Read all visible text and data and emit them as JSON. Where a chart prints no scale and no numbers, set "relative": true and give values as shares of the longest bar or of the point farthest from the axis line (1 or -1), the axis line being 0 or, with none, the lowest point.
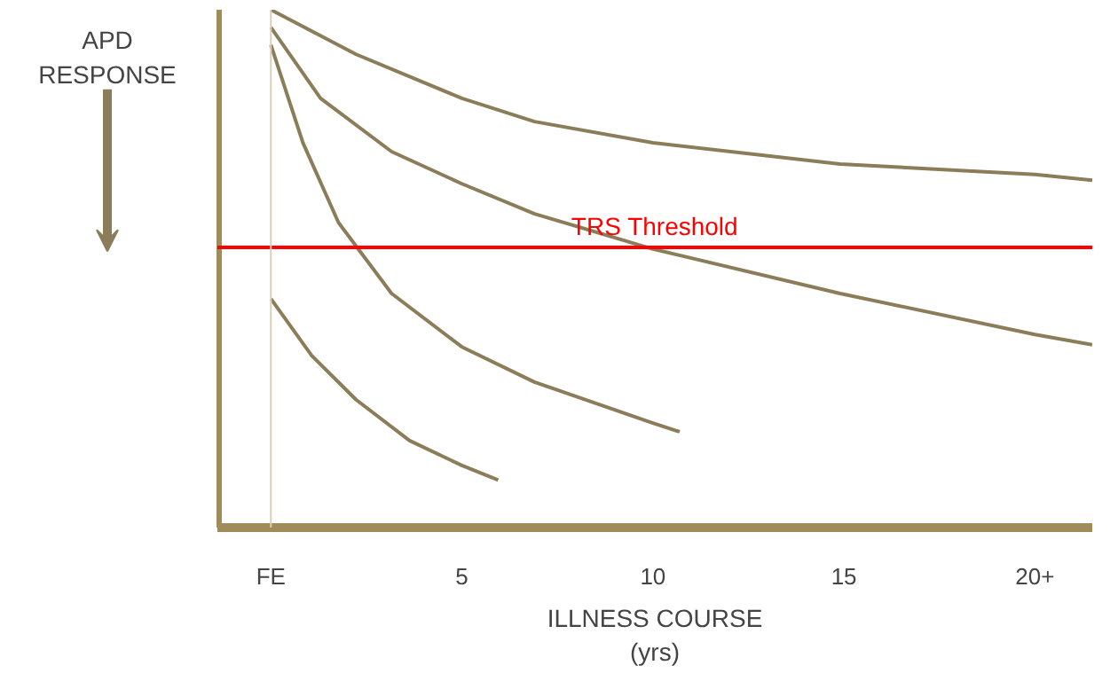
{
  "chart_data": {
    "type": "line",
    "relative": true,
    "ylabel": "APD RESPONSE",
    "xlabel": "ILLNESS COURSE\n(yrs)",
    "xlim": [
      -1.4,
      21.5
    ],
    "xticks": [
      {
        "value": 0,
        "label": "FE"
      },
      5,
      10,
      15,
      {
        "value": 20,
        "label": "20+"
      }
    ],
    "grid": false,
    "marker": "none",
    "line_style": "solid",
    "series": [
      {
        "color": "#8b7d5a",
        "x": [
          0,
          2.23,
          5,
          6.9,
          10,
          14.9,
          20,
          21.5
        ],
        "values": [
          1.0,
          0.914,
          0.829,
          0.784,
          0.743,
          0.702,
          0.682,
          0.671
        ]
      },
      {
        "color": "#8b7d5a",
        "x": [
          0,
          1.3,
          3.16,
          5,
          6.9,
          10,
          14.9,
          20,
          21.5
        ],
        "values": [
          0.966,
          0.829,
          0.726,
          0.664,
          0.606,
          0.538,
          0.452,
          0.373,
          0.353
        ]
      },
      {
        "color": "#8b7d5a",
        "x": [
          0,
          0.84,
          1.77,
          3.16,
          5,
          6.9,
          10,
          10.7
        ],
        "values": [
          0.932,
          0.743,
          0.589,
          0.452,
          0.349,
          0.281,
          0.202,
          0.185
        ]
      },
      {
        "color": "#8b7d5a",
        "x": [
          0,
          1.07,
          2.23,
          3.63,
          5,
          5.95
        ],
        "values": [
          0.442,
          0.332,
          0.247,
          0.168,
          0.12,
          0.092
        ]
      }
    ],
    "ref_lines": [
      {
        "axis": "y",
        "value": 0.541,
        "label": "TRS Threshold",
        "color": "#ff0000"
      },
      {
        "axis": "x",
        "value": 0,
        "label": null,
        "color": "#d8d0b8"
      }
    ]
  }
}
